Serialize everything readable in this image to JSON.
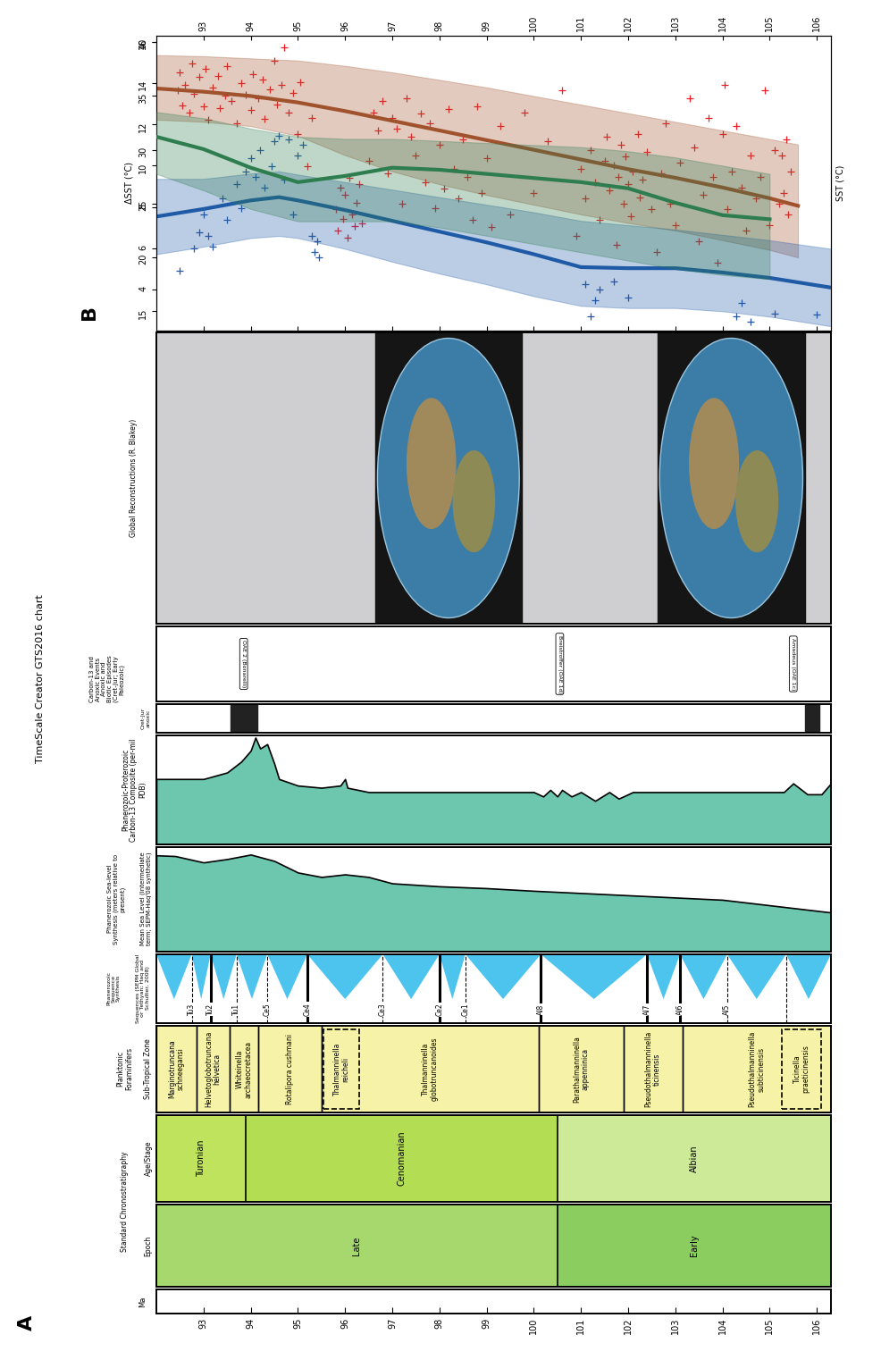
{
  "panel_a": {
    "panel_label": "A",
    "title": "TimeScale Creator GTS2016 chart",
    "xlim": [
      92.0,
      106.3
    ],
    "ma": {
      "header": "Ma",
      "xticks": [
        93,
        94,
        95,
        96,
        97,
        98,
        99,
        100,
        101,
        102,
        103,
        104,
        105,
        106
      ]
    },
    "chronostratigraphy": {
      "header": "Standard Chronostratigraphy",
      "epoch": {
        "header": "Epoch",
        "units": [
          {
            "name": "Late",
            "start": 92.0,
            "end": 100.5,
            "color": "#A6D86E"
          },
          {
            "name": "Early",
            "start": 100.5,
            "end": 106.3,
            "color": "#8CCD5F"
          }
        ]
      },
      "stage": {
        "header": "Age/Stage",
        "units": [
          {
            "name": "Turonian",
            "start": 92.0,
            "end": 93.9,
            "color": "#BFE35D"
          },
          {
            "name": "Cenomanian",
            "start": 93.9,
            "end": 100.5,
            "color": "#B3DE53"
          },
          {
            "name": "Albian",
            "start": 100.5,
            "end": 106.3,
            "color": "#CCEA97"
          }
        ]
      }
    },
    "forams": {
      "header": "Planktonic\nForaminifers",
      "subheader": "Sub-Tropical Zone",
      "color": "#F6F3A8",
      "zones": [
        {
          "name": "Marginotruncana\nschneegansi",
          "start": 92.0,
          "end": 92.85
        },
        {
          "name": "Helvetoglobotruncana\nhelvetica",
          "start": 92.85,
          "end": 93.55
        },
        {
          "name": "Whiteinella\narchaeocretacea",
          "start": 93.55,
          "end": 94.15
        },
        {
          "name": "Rotalipora cushmani",
          "start": 94.15,
          "end": 95.5
        },
        {
          "name": "Thalmanninella\nglobotruncanoides",
          "start": 95.5,
          "end": 100.1
        },
        {
          "name": "Parathalmanninella\nappenninica",
          "start": 100.1,
          "end": 101.9
        },
        {
          "name": "Pseudothalmanninella\nticinensis",
          "start": 101.9,
          "end": 103.15
        },
        {
          "name": "Pseudothalmanninella\nsubticinensis",
          "start": 103.15,
          "end": 106.3
        }
      ],
      "subzones": [
        {
          "name": "Thalmanninella\nreicheli",
          "start": 95.55,
          "end": 96.3
        },
        {
          "name": "Ticinella\npraeticinensis",
          "start": 105.25,
          "end": 106.1
        }
      ]
    },
    "sequences": {
      "header": "Phanerozoic\nSequence\nSynthesis",
      "subheader": "Sequences (SEPM Global\nor Tethyan; Haq and\nSchutter, 2008)",
      "color": "#4DC4EE",
      "boundaries": [
        {
          "name": "Tu3",
          "age": 92.75,
          "line_style": "dashed"
        },
        {
          "name": "Tu2",
          "age": 93.15,
          "line_style": "solid"
        },
        {
          "name": "Tu1",
          "age": 93.7,
          "line_style": "dashed"
        },
        {
          "name": "Ce5",
          "age": 94.35,
          "line_style": "dashed"
        },
        {
          "name": "Ce4",
          "age": 95.2,
          "line_style": "solid"
        },
        {
          "name": "Ce3",
          "age": 96.8,
          "line_style": "dashed"
        },
        {
          "name": "Ce2",
          "age": 98.0,
          "line_style": "solid"
        },
        {
          "name": "Ce1",
          "age": 98.55,
          "line_style": "dashed"
        },
        {
          "name": "Al8",
          "age": 100.15,
          "line_style": "solid"
        },
        {
          "name": "Al7",
          "age": 102.4,
          "line_style": "solid"
        },
        {
          "name": "Al6",
          "age": 103.1,
          "line_style": "solid"
        },
        {
          "name": "Al5",
          "age": 104.1,
          "line_style": "dashed"
        },
        {
          "name": null,
          "age": 105.35,
          "line_style": "dashed"
        }
      ]
    },
    "sea_level": {
      "header": "Phanerozoic Sea-level\nSynthesis (meters relative to\npresent)",
      "subheader": "Mean Sea Level (intermediate\nterm; SEPM-Haq'08 synthetic)",
      "color": "#6CC7AE",
      "ylim": [
        0,
        280
      ],
      "x": [
        92.0,
        92.4,
        93.0,
        93.5,
        94.0,
        94.5,
        95.0,
        95.5,
        96.0,
        96.5,
        97.0,
        98.0,
        99.0,
        100.0,
        102.0,
        104.0,
        106.3
      ],
      "values": [
        258,
        256,
        239,
        248,
        260,
        243,
        212,
        200,
        207,
        200,
        183,
        175,
        170,
        163,
        151,
        139,
        105
      ]
    },
    "carbon13": {
      "header": "Phanerozoic-Proterozoic\nCarbon-13 Composite (per-mil\nPDB)",
      "color": "#6CC7AE",
      "ylim": [
        0,
        5
      ],
      "x": [
        92.0,
        93.0,
        93.5,
        93.8,
        94.0,
        94.1,
        94.2,
        94.35,
        94.5,
        94.6,
        95.0,
        95.5,
        95.9,
        96.0,
        96.05,
        96.5,
        98.0,
        100.0,
        100.2,
        100.35,
        100.5,
        100.6,
        100.8,
        101.0,
        101.3,
        101.6,
        101.8,
        102.1,
        103.0,
        104.0,
        105.3,
        105.5,
        105.8,
        106.1,
        106.3
      ],
      "values": [
        3.0,
        3.0,
        3.3,
        3.8,
        4.3,
        4.9,
        4.4,
        4.6,
        3.7,
        3.0,
        2.7,
        2.6,
        2.7,
        3.0,
        2.6,
        2.4,
        2.4,
        2.4,
        2.2,
        2.5,
        2.2,
        2.5,
        2.2,
        2.4,
        2.0,
        2.4,
        2.1,
        2.4,
        2.4,
        2.4,
        2.4,
        2.8,
        2.3,
        2.3,
        2.8
      ]
    },
    "events": {
      "header": "Carbon-13 and\nAnoxic Events\nAnoxic and\nBiotic Episodes\n(Cret-Jur; Early\nPaleozoic)",
      "items": [
        {
          "name": "OAE 2 (Bonarelli)",
          "age": 93.85
        },
        {
          "name": "Breistroffer (OAE 1d)",
          "age": 100.55
        },
        {
          "name": "Amadeus (OAE 1c)",
          "age": 105.5
        }
      ]
    },
    "anoxic": {
      "header": "Cret-Jur\nanoxic",
      "intervals": [
        [
          93.57,
          94.14
        ],
        [
          105.75,
          106.05
        ]
      ]
    },
    "reconstructions": {
      "header": "Global Reconstructions (R. Blakey)",
      "color": "#CFCFD1",
      "maps": [
        {
          "start": 96.64,
          "end": 99.74
        },
        {
          "start": 102.62,
          "end": 105.75
        }
      ]
    }
  },
  "chart_data": {
    "type": "scatter",
    "panel_label": "B",
    "xlim": [
      92.0,
      106.3
    ],
    "xticks": [
      93,
      94,
      95,
      96,
      97,
      98,
      99,
      100,
      101,
      102,
      103,
      104,
      105,
      106
    ],
    "ylim": [
      13.2,
      40.6
    ],
    "yticks": [
      15,
      20,
      25,
      30,
      35,
      40
    ],
    "ylabel": "SST (°C)",
    "y2lim": [
      2.0,
      16.3
    ],
    "y2ticks": [
      4,
      6,
      8,
      10,
      12,
      14,
      16
    ],
    "y2label": "ΔSST (°C)",
    "series": [
      {
        "type": "scatter",
        "color": "#EE1C24",
        "marker": "plus",
        "x": [
          92.45,
          92.5,
          92.55,
          92.6,
          92.7,
          92.75,
          92.8,
          92.9,
          93.0,
          93.05,
          93.1,
          93.2,
          93.3,
          93.35,
          93.45,
          93.5,
          93.6,
          93.7,
          93.8,
          93.9,
          94.0,
          94.05,
          94.15,
          94.25,
          94.3,
          94.4,
          94.5,
          94.55,
          94.65,
          94.7,
          94.8,
          94.9,
          95.0,
          95.05,
          95.2,
          95.3,
          95.8,
          95.85,
          95.9,
          95.95,
          96.0,
          96.05,
          96.1,
          96.15,
          96.2,
          96.25,
          96.3,
          96.35,
          96.5,
          96.6,
          96.7,
          96.8,
          96.9,
          97.0,
          97.1,
          97.2,
          97.3,
          97.4,
          97.5,
          97.6,
          97.7,
          97.8,
          97.9,
          98.0,
          98.1,
          98.2,
          98.3,
          98.4,
          98.5,
          98.6,
          98.7,
          98.8,
          98.9,
          99.0,
          99.1,
          99.3,
          99.5,
          99.8,
          100.0,
          100.3,
          100.6,
          100.9,
          101.0,
          101.1,
          101.2,
          101.3,
          101.4,
          101.5,
          101.55,
          101.6,
          101.7,
          101.75,
          101.8,
          101.85,
          101.9,
          101.95,
          102.0,
          102.05,
          102.1,
          102.2,
          102.25,
          102.3,
          102.4,
          102.5,
          102.6,
          102.7,
          102.8,
          102.9,
          103.0,
          103.1,
          103.3,
          103.4,
          103.5,
          103.6,
          103.7,
          103.8,
          103.9,
          104.0,
          104.05,
          104.1,
          104.2,
          104.3,
          104.4,
          104.5,
          104.6,
          104.7,
          104.8,
          104.9,
          105.0,
          105.1,
          105.2,
          105.25,
          105.3,
          105.35,
          105.4,
          105.45
        ],
        "values": [
          35.5,
          37.2,
          34.1,
          36.0,
          33.5,
          38.0,
          35.2,
          36.8,
          34.0,
          37.5,
          32.8,
          35.8,
          36.9,
          33.9,
          35.0,
          37.8,
          34.5,
          32.5,
          36.2,
          35.1,
          33.7,
          37.0,
          34.8,
          36.5,
          32.9,
          35.6,
          38.3,
          34.2,
          36.0,
          39.5,
          33.5,
          35.3,
          31.5,
          36.3,
          28.5,
          33.0,
          24.5,
          22.5,
          26.5,
          23.6,
          25.8,
          21.8,
          27.4,
          24.0,
          22.9,
          25.1,
          26.8,
          23.2,
          29.0,
          33.5,
          31.8,
          34.5,
          27.8,
          33.0,
          32.0,
          25.0,
          34.8,
          31.2,
          29.5,
          33.4,
          27.0,
          32.5,
          24.6,
          30.5,
          26.4,
          33.8,
          28.2,
          25.5,
          31.0,
          27.5,
          23.5,
          34.0,
          26.0,
          29.2,
          22.8,
          32.2,
          24.0,
          33.5,
          26.0,
          30.8,
          35.5,
          22.0,
          28.2,
          25.5,
          30.0,
          27.0,
          23.5,
          29.0,
          31.2,
          26.2,
          28.6,
          21.2,
          27.5,
          30.5,
          25.0,
          29.4,
          26.8,
          23.8,
          28.0,
          31.5,
          25.6,
          27.2,
          29.8,
          24.5,
          20.5,
          27.8,
          32.5,
          25.0,
          23.0,
          28.8,
          34.8,
          30.2,
          21.5,
          25.8,
          33.0,
          27.5,
          19.5,
          31.5,
          36.0,
          24.5,
          28.0,
          32.2,
          26.5,
          22.5,
          29.5,
          25.5,
          27.5,
          35.5,
          23.0,
          30.0,
          25.0,
          29.5,
          26.0,
          31.0,
          24.0,
          28.0
        ]
      },
      {
        "type": "scatter",
        "color": "#2457A6",
        "marker": "plus",
        "x": [
          92.5,
          92.8,
          92.9,
          93.0,
          93.1,
          93.2,
          93.4,
          93.5,
          93.7,
          93.8,
          93.9,
          94.0,
          94.1,
          94.2,
          94.3,
          94.45,
          94.5,
          94.6,
          94.7,
          94.8,
          94.9,
          95.0,
          95.1,
          95.3,
          95.35,
          95.4,
          95.45,
          101.1,
          101.2,
          101.3,
          101.4,
          101.7,
          102.0,
          104.3,
          104.4,
          104.6,
          105.1,
          106.0
        ],
        "values": [
          18.8,
          20.8,
          22.3,
          24.0,
          22.0,
          21.0,
          25.5,
          23.5,
          26.8,
          24.6,
          28.0,
          29.2,
          27.5,
          30.0,
          26.5,
          28.5,
          30.8,
          31.3,
          27.2,
          31.0,
          24.0,
          29.5,
          30.5,
          22.0,
          20.5,
          21.5,
          20.0,
          17.5,
          14.5,
          16.0,
          17.0,
          17.8,
          16.3,
          14.5,
          15.8,
          14.0,
          14.8,
          14.7
        ]
      },
      {
        "type": "line",
        "color": "#A0522D",
        "x": [
          92.0,
          93,
          94,
          95,
          96,
          97,
          98,
          99,
          100,
          101,
          102,
          103,
          104,
          105,
          105.6
        ],
        "values": [
          35.7,
          35.4,
          35.0,
          34.4,
          33.6,
          32.7,
          31.8,
          30.9,
          30.0,
          29.1,
          28.2,
          27.4,
          26.5,
          25.5,
          24.8
        ],
        "upper": [
          38.8,
          38.7,
          38.5,
          38.3,
          37.8,
          37.2,
          36.5,
          35.8,
          35.0,
          34.2,
          33.4,
          32.6,
          31.8,
          31.0,
          30.5
        ],
        "lower": [
          32.8,
          32.6,
          32.2,
          31.3,
          29.5,
          28.0,
          26.8,
          25.8,
          24.9,
          24.0,
          23.2,
          22.5,
          21.6,
          20.7,
          20.0
        ]
      },
      {
        "type": "line",
        "color": "#2E7D4F",
        "axis": "y2",
        "x": [
          92.0,
          93,
          94,
          95,
          96,
          97,
          98,
          99,
          100,
          101,
          102,
          103,
          104,
          105
        ],
        "values": [
          11.4,
          10.8,
          9.9,
          9.2,
          9.5,
          9.9,
          9.8,
          9.6,
          9.4,
          9.2,
          8.9,
          8.2,
          7.6,
          7.4
        ],
        "upper": [
          12.6,
          12.3,
          11.8,
          11.4,
          11.3,
          11.3,
          11.2,
          11.1,
          11.0,
          10.9,
          10.7,
          10.4,
          10.0,
          9.6
        ],
        "lower": [
          9.6,
          8.8,
          7.9,
          7.3,
          7.3,
          7.3,
          7.0,
          6.6,
          6.2,
          5.8,
          5.4,
          5.0,
          4.7,
          4.5
        ]
      },
      {
        "type": "line",
        "color": "#1F5AA6",
        "x": [
          92.0,
          93,
          94,
          94.6,
          95,
          96,
          97,
          98,
          99,
          100,
          101,
          102,
          103,
          104,
          105,
          106.3
        ],
        "values": [
          23.8,
          24.5,
          25.3,
          25.6,
          25.3,
          24.4,
          23.4,
          22.4,
          21.4,
          20.3,
          19.1,
          19.0,
          19.0,
          18.6,
          18.1,
          17.2
        ],
        "upper": [
          27.3,
          27.3,
          27.8,
          28.0,
          27.7,
          27.0,
          26.3,
          25.6,
          24.9,
          24.2,
          23.4,
          23.0,
          22.6,
          22.1,
          21.6,
          20.8
        ],
        "lower": [
          20.3,
          21.0,
          21.8,
          22.0,
          21.8,
          20.8,
          19.6,
          18.5,
          17.5,
          16.4,
          15.5,
          15.3,
          15.3,
          15.0,
          14.5,
          13.6
        ]
      }
    ]
  }
}
